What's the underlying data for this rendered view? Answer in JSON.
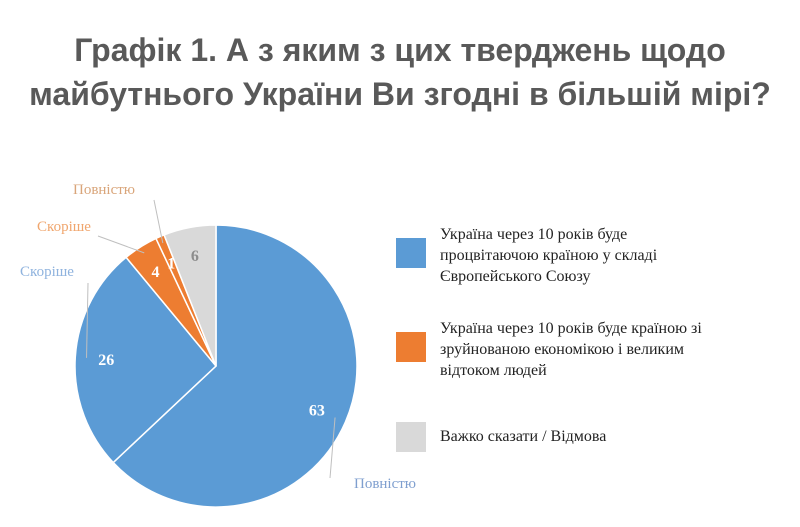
{
  "title": {
    "line1": "Графік 1. А з яким з цих тверджень щодо",
    "line2": "майбутнього України Ви згодні в більшій мірі?"
  },
  "chart_data": {
    "type": "pie",
    "title": "Графік 1. А з яким з цих тверджень щодо майбутнього України Ви згодні в більшій мірі?",
    "slices": [
      {
        "value": 63,
        "group": "Україна через 10 років буде процвітаючою країною у складі Європейського Союзу",
        "sublabel": "Повністю",
        "color": "#5b9bd5"
      },
      {
        "value": 26,
        "group": "Україна через 10 років буде процвітаючою країною у складі Європейського Союзу",
        "sublabel": "Скоріше",
        "color": "#5b9bd5"
      },
      {
        "value": 4,
        "group": "Україна через 10 років буде країною зі зруйнованою економікою і великим відтоком людей",
        "sublabel": "Скоріше",
        "color": "#ed7d31"
      },
      {
        "value": 1,
        "group": "Україна через 10 років буде країною зі зруйнованою економікою і великим відтоком людей",
        "sublabel": "Повністю",
        "color": "#ed7d31"
      },
      {
        "value": 6,
        "group": "Важко сказати / Відмова",
        "sublabel": "",
        "color": "#d9d9d9"
      }
    ],
    "legend": [
      {
        "lines": [
          "Україна через 10 років буде",
          "процвітаючою країною у складі",
          "Європейського Союзу"
        ],
        "color": "#5b9bd5"
      },
      {
        "lines": [
          "Україна через 10 років буде країною зі",
          "зруйнованою економікою і великим",
          "відтоком людей"
        ],
        "color": "#ed7d31"
      },
      {
        "lines": [
          "Важко сказати / Відмова"
        ],
        "color": "#d9d9d9"
      }
    ],
    "legend_position": "right"
  }
}
